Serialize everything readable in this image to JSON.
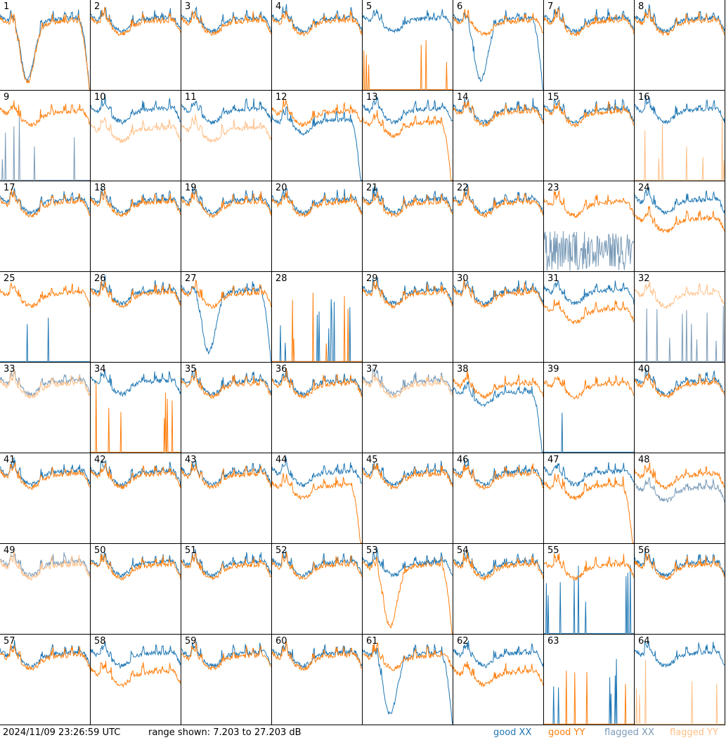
{
  "footer": {
    "timestamp": "2024/11/09 23:26:59 UTC",
    "range": "range shown: 7.203 to 27.203 dB"
  },
  "legend": [
    {
      "label": "good XX",
      "color": "#1f77b4"
    },
    {
      "label": "good YY",
      "color": "#ff7f0e"
    },
    {
      "label": "flagged XX",
      "color": "#7a9bb8"
    },
    {
      "label": "flagged YY",
      "color": "#ffbf86"
    }
  ],
  "chart_data": {
    "type": "line",
    "ylim": [
      7.203,
      27.203
    ],
    "grid": false,
    "panels": [
      {
        "id": "1",
        "xx": "good",
        "yy": "good",
        "shape": "both-dip"
      },
      {
        "id": "2",
        "xx": "good",
        "yy": "good",
        "shape": "normal"
      },
      {
        "id": "3",
        "xx": "good",
        "yy": "good",
        "shape": "normal"
      },
      {
        "id": "4",
        "xx": "good",
        "yy": "good",
        "shape": "normal"
      },
      {
        "id": "5",
        "xx": "good",
        "yy": "good",
        "shape": "yy-dead"
      },
      {
        "id": "6",
        "xx": "good",
        "yy": "good",
        "shape": "xx-dip"
      },
      {
        "id": "7",
        "xx": "good",
        "yy": "good",
        "shape": "normal"
      },
      {
        "id": "8",
        "xx": "good",
        "yy": "good",
        "shape": "normal"
      },
      {
        "id": "9",
        "xx": "flagged",
        "yy": "good",
        "shape": "xx-dead"
      },
      {
        "id": "10",
        "xx": "good",
        "yy": "flagged",
        "shape": "yy-low"
      },
      {
        "id": "11",
        "xx": "good",
        "yy": "flagged",
        "shape": "yy-low"
      },
      {
        "id": "12",
        "xx": "good",
        "yy": "good",
        "shape": "xx-roll"
      },
      {
        "id": "13",
        "xx": "good",
        "yy": "good",
        "shape": "yy-roll"
      },
      {
        "id": "14",
        "xx": "good",
        "yy": "good",
        "shape": "normal"
      },
      {
        "id": "15",
        "xx": "good",
        "yy": "good",
        "shape": "normal"
      },
      {
        "id": "16",
        "xx": "good",
        "yy": "flagged",
        "shape": "yy-dead"
      },
      {
        "id": "17",
        "xx": "good",
        "yy": "good",
        "shape": "normal"
      },
      {
        "id": "18",
        "xx": "good",
        "yy": "good",
        "shape": "normal"
      },
      {
        "id": "19",
        "xx": "good",
        "yy": "good",
        "shape": "normal"
      },
      {
        "id": "20",
        "xx": "good",
        "yy": "good",
        "shape": "normal"
      },
      {
        "id": "21",
        "xx": "good",
        "yy": "good",
        "shape": "normal"
      },
      {
        "id": "22",
        "xx": "good",
        "yy": "good",
        "shape": "normal"
      },
      {
        "id": "23",
        "xx": "flagged",
        "yy": "good",
        "shape": "xx-noisy"
      },
      {
        "id": "24",
        "xx": "good",
        "yy": "good",
        "shape": "yy-low"
      },
      {
        "id": "25",
        "xx": "good",
        "yy": "good",
        "shape": "xx-dead"
      },
      {
        "id": "26",
        "xx": "good",
        "yy": "good",
        "shape": "normal"
      },
      {
        "id": "27",
        "xx": "good",
        "yy": "good",
        "shape": "xx-dip"
      },
      {
        "id": "28",
        "xx": "good",
        "yy": "good",
        "shape": "both-dead"
      },
      {
        "id": "29",
        "xx": "good",
        "yy": "good",
        "shape": "normal"
      },
      {
        "id": "30",
        "xx": "good",
        "yy": "good",
        "shape": "normal"
      },
      {
        "id": "31",
        "xx": "good",
        "yy": "good",
        "shape": "yy-low"
      },
      {
        "id": "32",
        "xx": "flagged",
        "yy": "flagged",
        "shape": "xx-dead"
      },
      {
        "id": "33",
        "xx": "flagged",
        "yy": "flagged",
        "shape": "normal"
      },
      {
        "id": "34",
        "xx": "good",
        "yy": "good",
        "shape": "yy-dead"
      },
      {
        "id": "35",
        "xx": "good",
        "yy": "good",
        "shape": "normal"
      },
      {
        "id": "36",
        "xx": "good",
        "yy": "good",
        "shape": "normal"
      },
      {
        "id": "37",
        "xx": "flagged",
        "yy": "flagged",
        "shape": "normal"
      },
      {
        "id": "38",
        "xx": "good",
        "yy": "good",
        "shape": "xx-roll"
      },
      {
        "id": "39",
        "xx": "good",
        "yy": "good",
        "shape": "xx-dead"
      },
      {
        "id": "40",
        "xx": "good",
        "yy": "good",
        "shape": "normal"
      },
      {
        "id": "41",
        "xx": "good",
        "yy": "good",
        "shape": "normal"
      },
      {
        "id": "42",
        "xx": "good",
        "yy": "good",
        "shape": "normal"
      },
      {
        "id": "43",
        "xx": "good",
        "yy": "good",
        "shape": "normal"
      },
      {
        "id": "44",
        "xx": "good",
        "yy": "good",
        "shape": "yy-roll"
      },
      {
        "id": "45",
        "xx": "good",
        "yy": "good",
        "shape": "normal"
      },
      {
        "id": "46",
        "xx": "good",
        "yy": "good",
        "shape": "normal"
      },
      {
        "id": "47",
        "xx": "good",
        "yy": "good",
        "shape": "yy-roll"
      },
      {
        "id": "48",
        "xx": "flagged",
        "yy": "good",
        "shape": "xx-low"
      },
      {
        "id": "49",
        "xx": "flagged",
        "yy": "flagged",
        "shape": "normal"
      },
      {
        "id": "50",
        "xx": "good",
        "yy": "good",
        "shape": "normal"
      },
      {
        "id": "51",
        "xx": "good",
        "yy": "good",
        "shape": "normal"
      },
      {
        "id": "52",
        "xx": "good",
        "yy": "good",
        "shape": "normal"
      },
      {
        "id": "53",
        "xx": "good",
        "yy": "good",
        "shape": "yy-dip"
      },
      {
        "id": "54",
        "xx": "good",
        "yy": "good",
        "shape": "normal"
      },
      {
        "id": "55",
        "xx": "good",
        "yy": "good",
        "shape": "xx-dead"
      },
      {
        "id": "56",
        "xx": "good",
        "yy": "good",
        "shape": "normal"
      },
      {
        "id": "57",
        "xx": "good",
        "yy": "good",
        "shape": "normal"
      },
      {
        "id": "58",
        "xx": "good",
        "yy": "good",
        "shape": "yy-low"
      },
      {
        "id": "59",
        "xx": "good",
        "yy": "good",
        "shape": "normal"
      },
      {
        "id": "60",
        "xx": "good",
        "yy": "good",
        "shape": "normal"
      },
      {
        "id": "61",
        "xx": "good",
        "yy": "good",
        "shape": "xx-dip"
      },
      {
        "id": "62",
        "xx": "good",
        "yy": "good",
        "shape": "yy-low"
      },
      {
        "id": "63",
        "xx": "good",
        "yy": "good",
        "shape": "both-dead"
      },
      {
        "id": "64",
        "xx": "good",
        "yy": "flagged",
        "shape": "yy-dead"
      }
    ]
  }
}
